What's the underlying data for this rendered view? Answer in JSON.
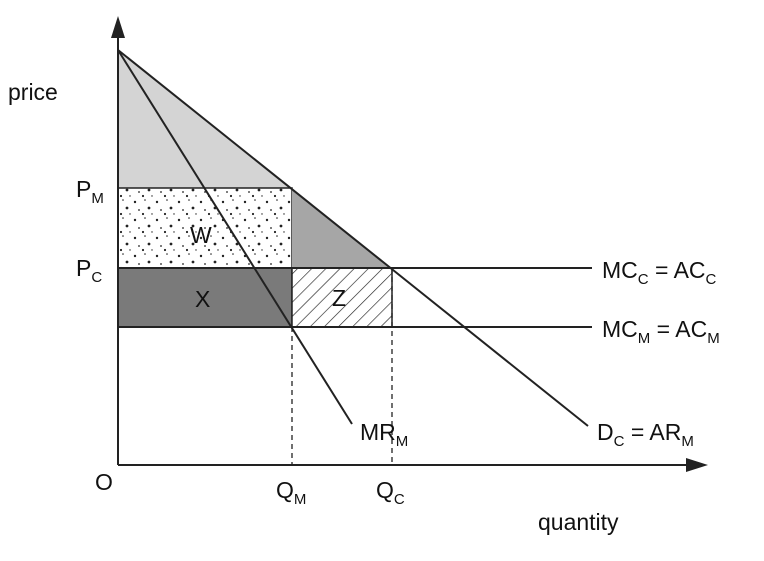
{
  "axes": {
    "y_label": "price",
    "x_label": "quantity",
    "origin": "O"
  },
  "price_labels": [
    [
      {
        "text": "P"
      },
      {
        "sub": "M"
      }
    ],
    [
      {
        "text": "P"
      },
      {
        "sub": "C"
      }
    ]
  ],
  "quantity_labels": [
    [
      {
        "text": "Q"
      },
      {
        "sub": "M"
      }
    ],
    [
      {
        "text": "Q"
      },
      {
        "sub": "C"
      }
    ]
  ],
  "curve_labels": [
    [
      {
        "text": "MC"
      },
      {
        "sub": "C"
      },
      {
        "text": " = AC"
      },
      {
        "sub": "C"
      }
    ],
    [
      {
        "text": "MC"
      },
      {
        "sub": "M"
      },
      {
        "text": " = AC"
      },
      {
        "sub": "M"
      }
    ],
    [
      {
        "text": "MR"
      },
      {
        "sub": "M"
      }
    ],
    [
      {
        "text": "D"
      },
      {
        "sub": "C"
      },
      {
        "text": " = AR"
      },
      {
        "sub": "M"
      }
    ]
  ],
  "areas": [
    "W",
    "X",
    "Z"
  ]
}
